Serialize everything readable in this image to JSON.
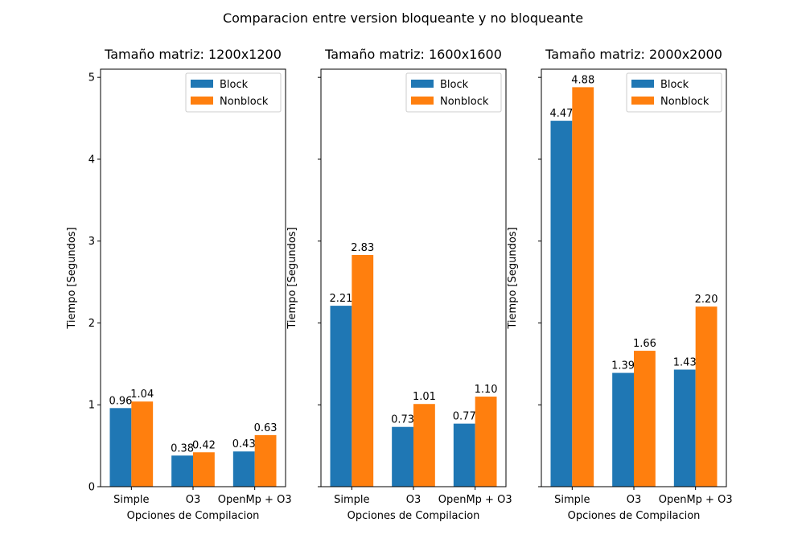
{
  "figure": {
    "suptitle": "Comparacion entre version bloqueante y no bloqueante"
  },
  "colors": {
    "block": "#1f77b4",
    "nonblock": "#ff7f0e"
  },
  "chart_data": [
    {
      "type": "bar",
      "title": "Tamaño matriz: 1200x1200",
      "xlabel": "Opciones de Compilacion",
      "ylabel": "Tiempo [Segundos]",
      "categories": [
        "Simple",
        "O3",
        "OpenMp + O3"
      ],
      "series": [
        {
          "name": "Block",
          "values": [
            0.96,
            0.38,
            0.43
          ],
          "labels": [
            "0.96",
            "0.38",
            "0.43"
          ]
        },
        {
          "name": "Nonblock",
          "values": [
            1.04,
            0.42,
            0.63
          ],
          "labels": [
            "1.04",
            "0.42",
            "0.63"
          ]
        }
      ],
      "ylim": [
        0,
        5.1
      ],
      "yticks": [
        "0",
        "1",
        "2",
        "3",
        "4",
        "5"
      ],
      "show_ytick_labels": true,
      "legend": "top-right",
      "grid": false
    },
    {
      "type": "bar",
      "title": "Tamaño matriz: 1600x1600",
      "xlabel": "Opciones de Compilacion",
      "ylabel": "Tiempo [Segundos]",
      "categories": [
        "Simple",
        "O3",
        "OpenMp + O3"
      ],
      "series": [
        {
          "name": "Block",
          "values": [
            2.21,
            0.73,
            0.77
          ],
          "labels": [
            "2.21",
            "0.73",
            "0.77"
          ]
        },
        {
          "name": "Nonblock",
          "values": [
            2.83,
            1.01,
            1.1
          ],
          "labels": [
            "2.83",
            "1.01",
            "1.10"
          ]
        }
      ],
      "ylim": [
        0,
        5.1
      ],
      "yticks": [
        "0",
        "1",
        "2",
        "3",
        "4",
        "5"
      ],
      "show_ytick_labels": false,
      "legend": "top-right",
      "grid": false
    },
    {
      "type": "bar",
      "title": "Tamaño matriz: 2000x2000",
      "xlabel": "Opciones de Compilacion",
      "ylabel": "Tiempo [Segundos]",
      "categories": [
        "Simple",
        "O3",
        "OpenMp + O3"
      ],
      "series": [
        {
          "name": "Block",
          "values": [
            4.47,
            1.39,
            1.43
          ],
          "labels": [
            "4.47",
            "1.39",
            "1.43"
          ]
        },
        {
          "name": "Nonblock",
          "values": [
            4.88,
            1.66,
            2.2
          ],
          "labels": [
            "4.88",
            "1.66",
            "2.20"
          ]
        }
      ],
      "ylim": [
        0,
        5.1
      ],
      "yticks": [
        "0",
        "1",
        "2",
        "3",
        "4",
        "5"
      ],
      "show_ytick_labels": false,
      "legend": "top-right",
      "grid": false
    }
  ]
}
